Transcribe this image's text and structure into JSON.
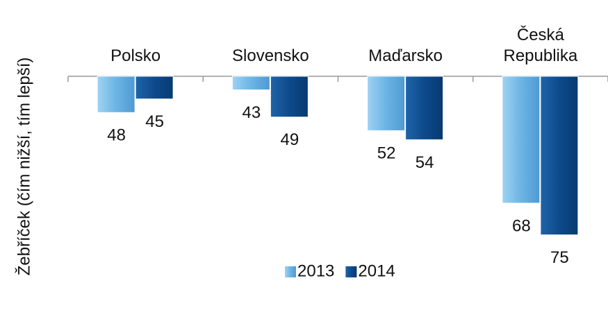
{
  "chart_data": {
    "type": "bar",
    "y_axis_label": "Žebříček (čím nižší, tím lepší)",
    "categories": [
      "Polsko",
      "Slovensko",
      "Maďarsko",
      "Česká Republika"
    ],
    "series": [
      {
        "name": "2013",
        "color": "#6cb4e4",
        "values": [
          48,
          43,
          52,
          68
        ]
      },
      {
        "name": "2014",
        "color": "#0d4a8c",
        "values": [
          45,
          49,
          54,
          75
        ]
      }
    ],
    "ylim": [
      40,
      85
    ],
    "y_inverted": true,
    "legend": "bottom"
  }
}
